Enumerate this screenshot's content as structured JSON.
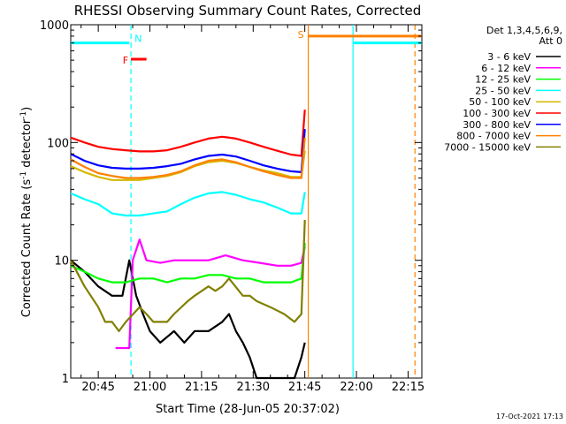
{
  "chart_data": {
    "type": "line",
    "title": "RHESSI Observing Summary Count Rates, Corrected",
    "ylabel_main": "Corrected Count Rate (s",
    "ylabel_sup1": "-1",
    "ylabel_mid": " detector",
    "ylabel_sup2": "-1",
    "ylabel_end": ")",
    "xlabel": "Start Time (28-Jun-05 20:37:02)",
    "yscale": "log",
    "ylim": [
      1,
      1000
    ],
    "x_unit": "minutes from 20:37:02",
    "xlim": [
      0,
      102
    ],
    "x_ticks": [
      {
        "value": 8,
        "label": "20:45"
      },
      {
        "value": 23,
        "label": "21:00"
      },
      {
        "value": 38,
        "label": "21:15"
      },
      {
        "value": 53,
        "label": "21:30"
      },
      {
        "value": 68,
        "label": "21:45"
      },
      {
        "value": 83,
        "label": "22:00"
      },
      {
        "value": 98,
        "label": "22:15"
      }
    ],
    "y_ticks": [
      {
        "value": 1,
        "label": "1"
      },
      {
        "value": 10,
        "label": "10"
      },
      {
        "value": 100,
        "label": "100"
      },
      {
        "value": 1000,
        "label": "1000"
      }
    ],
    "legend_header": [
      "Det 1,3,4,5,6,9,",
      "Att 0"
    ],
    "series": [
      {
        "name": "3 - 6 keV",
        "color": "#000000",
        "points": [
          [
            0,
            10
          ],
          [
            4,
            8
          ],
          [
            8,
            6
          ],
          [
            12,
            5
          ],
          [
            15,
            5
          ],
          [
            17,
            10
          ],
          [
            19,
            5
          ],
          [
            21,
            3.5
          ],
          [
            23,
            2.5
          ],
          [
            26,
            2
          ],
          [
            30,
            2.5
          ],
          [
            33,
            2
          ],
          [
            36,
            2.5
          ],
          [
            40,
            2.5
          ],
          [
            44,
            3
          ],
          [
            46,
            3.5
          ],
          [
            48,
            2.5
          ],
          [
            50,
            2
          ],
          [
            52,
            1.5
          ],
          [
            54,
            1
          ],
          [
            58,
            1
          ],
          [
            62,
            1
          ],
          [
            65,
            1
          ],
          [
            67,
            1.5
          ],
          [
            68,
            2
          ]
        ]
      },
      {
        "name": "6 - 12 keV",
        "color": "#ff00ff",
        "points": [
          [
            13,
            1.8
          ],
          [
            17,
            1.8
          ],
          [
            18,
            10
          ],
          [
            20,
            15
          ],
          [
            22,
            10
          ],
          [
            26,
            9.5
          ],
          [
            30,
            10
          ],
          [
            35,
            10
          ],
          [
            40,
            10
          ],
          [
            45,
            11
          ],
          [
            50,
            10
          ],
          [
            55,
            9.5
          ],
          [
            60,
            9
          ],
          [
            64,
            9
          ],
          [
            67,
            9.5
          ],
          [
            68,
            13
          ]
        ]
      },
      {
        "name": "12 - 25 keV",
        "color": "#00ff00",
        "points": [
          [
            0,
            9
          ],
          [
            4,
            8
          ],
          [
            8,
            7
          ],
          [
            12,
            6.5
          ],
          [
            16,
            6.5
          ],
          [
            20,
            7
          ],
          [
            24,
            7
          ],
          [
            28,
            6.5
          ],
          [
            32,
            7
          ],
          [
            36,
            7
          ],
          [
            40,
            7.5
          ],
          [
            44,
            7.5
          ],
          [
            48,
            7
          ],
          [
            52,
            7
          ],
          [
            56,
            6.5
          ],
          [
            60,
            6.5
          ],
          [
            64,
            6.5
          ],
          [
            67,
            7
          ],
          [
            68,
            14
          ]
        ]
      },
      {
        "name": "25 - 50 keV",
        "color": "#00ffff",
        "points": [
          [
            0,
            37
          ],
          [
            4,
            33
          ],
          [
            8,
            30
          ],
          [
            12,
            25
          ],
          [
            16,
            24
          ],
          [
            20,
            24
          ],
          [
            24,
            25
          ],
          [
            28,
            26
          ],
          [
            32,
            30
          ],
          [
            36,
            34
          ],
          [
            40,
            37
          ],
          [
            44,
            38
          ],
          [
            48,
            36
          ],
          [
            52,
            33
          ],
          [
            56,
            31
          ],
          [
            60,
            28
          ],
          [
            64,
            25
          ],
          [
            67,
            25
          ],
          [
            68,
            38
          ]
        ]
      },
      {
        "name": "50 - 100 keV",
        "color": "#d4b800",
        "points": [
          [
            0,
            63
          ],
          [
            4,
            56
          ],
          [
            8,
            51
          ],
          [
            12,
            48
          ],
          [
            16,
            48
          ],
          [
            20,
            48
          ],
          [
            24,
            50
          ],
          [
            28,
            52
          ],
          [
            32,
            56
          ],
          [
            36,
            63
          ],
          [
            40,
            68
          ],
          [
            44,
            70
          ],
          [
            48,
            67
          ],
          [
            52,
            62
          ],
          [
            56,
            58
          ],
          [
            60,
            55
          ],
          [
            64,
            51
          ],
          [
            67,
            51
          ],
          [
            68,
            85
          ]
        ]
      },
      {
        "name": "100 - 300 keV",
        "color": "#ff0000",
        "points": [
          [
            0,
            110
          ],
          [
            4,
            100
          ],
          [
            8,
            92
          ],
          [
            12,
            88
          ],
          [
            16,
            86
          ],
          [
            20,
            84
          ],
          [
            24,
            84
          ],
          [
            28,
            86
          ],
          [
            32,
            92
          ],
          [
            36,
            100
          ],
          [
            40,
            108
          ],
          [
            44,
            112
          ],
          [
            48,
            108
          ],
          [
            52,
            100
          ],
          [
            56,
            92
          ],
          [
            60,
            85
          ],
          [
            64,
            79
          ],
          [
            67,
            77
          ],
          [
            68,
            190
          ]
        ]
      },
      {
        "name": "300 - 800 keV",
        "color": "#0000ff",
        "points": [
          [
            0,
            80
          ],
          [
            4,
            70
          ],
          [
            8,
            64
          ],
          [
            12,
            61
          ],
          [
            16,
            60
          ],
          [
            20,
            60
          ],
          [
            24,
            61
          ],
          [
            28,
            63
          ],
          [
            32,
            66
          ],
          [
            36,
            72
          ],
          [
            40,
            77
          ],
          [
            44,
            79
          ],
          [
            48,
            76
          ],
          [
            52,
            70
          ],
          [
            56,
            64
          ],
          [
            60,
            60
          ],
          [
            64,
            57
          ],
          [
            67,
            56
          ],
          [
            68,
            130
          ]
        ]
      },
      {
        "name": "800 - 7000 keV",
        "color": "#ff8000",
        "points": [
          [
            0,
            72
          ],
          [
            4,
            62
          ],
          [
            8,
            55
          ],
          [
            12,
            52
          ],
          [
            16,
            50
          ],
          [
            20,
            50
          ],
          [
            24,
            51
          ],
          [
            28,
            53
          ],
          [
            32,
            57
          ],
          [
            36,
            64
          ],
          [
            40,
            70
          ],
          [
            44,
            72
          ],
          [
            48,
            68
          ],
          [
            52,
            62
          ],
          [
            56,
            57
          ],
          [
            60,
            53
          ],
          [
            64,
            50
          ],
          [
            67,
            50
          ],
          [
            68,
            110
          ]
        ]
      },
      {
        "name": "7000 - 15000 keV",
        "color": "#808000",
        "points": [
          [
            0,
            10
          ],
          [
            4,
            6
          ],
          [
            8,
            4
          ],
          [
            10,
            3
          ],
          [
            12,
            3
          ],
          [
            14,
            2.5
          ],
          [
            16,
            3
          ],
          [
            20,
            4
          ],
          [
            22,
            3.5
          ],
          [
            24,
            3
          ],
          [
            28,
            3
          ],
          [
            30,
            3.5
          ],
          [
            34,
            4.5
          ],
          [
            36,
            5
          ],
          [
            40,
            6
          ],
          [
            42,
            5.5
          ],
          [
            44,
            6
          ],
          [
            46,
            7
          ],
          [
            50,
            5
          ],
          [
            52,
            5
          ],
          [
            54,
            4.5
          ],
          [
            58,
            4
          ],
          [
            62,
            3.5
          ],
          [
            65,
            3
          ],
          [
            67,
            3.5
          ],
          [
            68,
            22
          ]
        ]
      }
    ],
    "flag_bars": [
      {
        "label": "",
        "color": "#00ffff",
        "x_start": 0,
        "x_end": 17,
        "level": 700
      },
      {
        "label": "",
        "color": "#00ffff",
        "x_start": 82,
        "x_end": 102,
        "level": 700
      },
      {
        "label": "F",
        "color": "#ff0000",
        "x_start": 17.5,
        "x_end": 22,
        "level": 510
      },
      {
        "label": "S",
        "color": "#ff8000",
        "x_start": 69,
        "x_end": 102,
        "level": 800
      },
      {
        "label": "N",
        "color": "#00ffff",
        "x_start": 17.5,
        "x_end": 17.5,
        "level": 700
      }
    ],
    "vertical_lines": [
      {
        "x": 17.5,
        "color": "#00ffff",
        "dashed": true
      },
      {
        "x": 69,
        "color": "#ff8000",
        "dashed": false
      },
      {
        "x": 82,
        "color": "#00ffff",
        "dashed": false
      },
      {
        "x": 100,
        "color": "#ff8000",
        "dashed": true
      }
    ],
    "footer": "17-Oct-2021 17:13"
  }
}
